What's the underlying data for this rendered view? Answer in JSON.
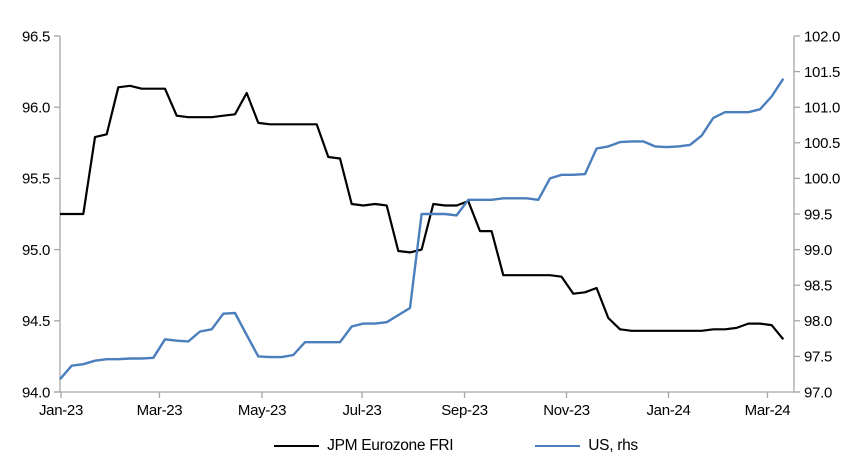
{
  "chart_data": {
    "type": "line",
    "title": "",
    "x_axis": {
      "tick_labels": [
        "Jan-23",
        "Mar-23",
        "May-23",
        "Jul-23",
        "Sep-23",
        "Nov-23",
        "Jan-24",
        "Mar-24"
      ],
      "range_note": "weekly observations, Jan-2023 to mid-Mar-2024",
      "grid": false
    },
    "left_axis": {
      "min": 94.0,
      "max": 96.5,
      "step": 0.5,
      "tick_labels": [
        "96.5",
        "96.0",
        "95.5",
        "95.0",
        "94.5",
        "94.0"
      ]
    },
    "right_axis": {
      "min": 97.0,
      "max": 102.0,
      "step": 0.5,
      "tick_labels": [
        "102.0",
        "101.5",
        "101.0",
        "100.5",
        "100.0",
        "99.5",
        "99.0",
        "98.5",
        "98.0",
        "97.5",
        "97.0"
      ]
    },
    "series": [
      {
        "name": "JPM Eurozone FRI",
        "axis": "left",
        "color": "#000000",
        "values": [
          95.25,
          95.25,
          95.25,
          95.79,
          95.81,
          96.14,
          96.15,
          96.13,
          96.13,
          96.13,
          95.94,
          95.93,
          95.93,
          95.93,
          95.94,
          95.95,
          96.1,
          95.89,
          95.88,
          95.88,
          95.88,
          95.88,
          95.88,
          95.65,
          95.64,
          95.32,
          95.31,
          95.32,
          95.31,
          94.99,
          94.98,
          95.0,
          95.32,
          95.31,
          95.31,
          95.34,
          95.13,
          95.13,
          94.82,
          94.82,
          94.82,
          94.82,
          94.82,
          94.81,
          94.69,
          94.7,
          94.73,
          94.52,
          94.44,
          94.43,
          94.43,
          94.43,
          94.43,
          94.43,
          94.43,
          94.43,
          94.44,
          94.44,
          94.45,
          94.48,
          94.48,
          94.47,
          94.37
        ]
      },
      {
        "name": "US, rhs",
        "axis": "right",
        "color": "#4a7ebc",
        "values": [
          97.18,
          97.37,
          97.39,
          97.44,
          97.46,
          97.46,
          97.47,
          97.47,
          97.48,
          97.74,
          97.72,
          97.71,
          97.85,
          97.88,
          98.1,
          98.11,
          97.8,
          97.5,
          97.49,
          97.49,
          97.52,
          97.7,
          97.7,
          97.7,
          97.7,
          97.92,
          97.96,
          97.96,
          97.98,
          98.08,
          98.18,
          99.5,
          99.5,
          99.5,
          99.48,
          99.7,
          99.7,
          99.7,
          99.72,
          99.72,
          99.72,
          99.7,
          100.0,
          100.05,
          100.05,
          100.06,
          100.42,
          100.45,
          100.51,
          100.52,
          100.52,
          100.45,
          100.44,
          100.45,
          100.47,
          100.6,
          100.85,
          100.93,
          100.93,
          100.93,
          100.97,
          101.15,
          101.4
        ]
      }
    ],
    "legend": {
      "position": "bottom-center",
      "entries": [
        "JPM Eurozone FRI",
        "US, rhs"
      ]
    },
    "axis_line_color": "#a6a6a6"
  }
}
